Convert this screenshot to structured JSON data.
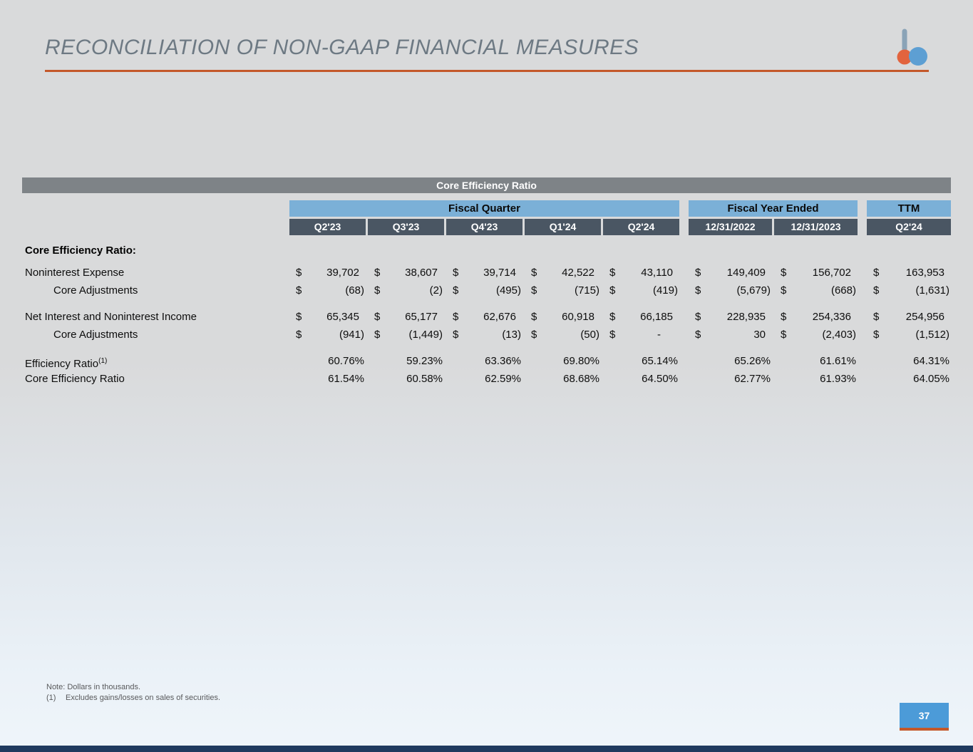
{
  "slide": {
    "title": "RECONCILIATION OF NON-GAAP FINANCIAL MEASURES",
    "page_number": "37",
    "note1": "Note: Dollars in thousands.",
    "note2_marker": "(1)",
    "note2_text": "Excludes gains/losses on sales of securities."
  },
  "colors": {
    "accent_orange": "#C4582A",
    "group_header_blue": "#7BB0D7",
    "column_header_slate": "#4A5663",
    "banner_gray": "#7E8387",
    "page_badge_blue": "#4C9BD8",
    "footer_navy": "#1F3A5F",
    "logo_orange": "#E2643E",
    "logo_blue": "#5D9FD3"
  },
  "table": {
    "banner": "Core Efficiency Ratio",
    "group_headers": {
      "fiscal_quarter": "Fiscal Quarter",
      "fiscal_year_ended": "Fiscal Year Ended",
      "ttm": "TTM"
    },
    "columns": [
      "Q2'23",
      "Q3'23",
      "Q4'23",
      "Q1'24",
      "Q2'24",
      "12/31/2022",
      "12/31/2023",
      "Q2'24"
    ],
    "section_label": "Core Efficiency Ratio:",
    "currency_symbol": "$",
    "rows": [
      {
        "label": "Noninterest Expense",
        "indent": false,
        "currency": true,
        "gap_before": false,
        "values": [
          "39,702",
          "38,607",
          "39,714",
          "42,522",
          "43,110",
          "149,409",
          "156,702",
          "163,953"
        ]
      },
      {
        "label": "Core Adjustments",
        "indent": true,
        "currency": true,
        "gap_before": false,
        "values": [
          "(68)",
          "(2)",
          "(495)",
          "(715)",
          "(419)",
          "(5,679)",
          "(668)",
          "(1,631)"
        ]
      },
      {
        "label": "Net Interest and Noninterest Income",
        "indent": false,
        "currency": true,
        "gap_before": true,
        "values": [
          "65,345",
          "65,177",
          "62,676",
          "60,918",
          "66,185",
          "228,935",
          "254,336",
          "254,956"
        ]
      },
      {
        "label": "Core Adjustments",
        "indent": true,
        "currency": true,
        "gap_before": false,
        "values": [
          "(941)",
          "(1,449)",
          "(13)",
          "(50)",
          "-",
          "30",
          "(2,403)",
          "(1,512)"
        ]
      },
      {
        "label": "Efficiency Ratio",
        "superscript": "(1)",
        "indent": false,
        "currency": false,
        "gap_before": true,
        "values": [
          "60.76%",
          "59.23%",
          "63.36%",
          "69.80%",
          "65.14%",
          "65.26%",
          "61.61%",
          "64.31%"
        ]
      },
      {
        "label": "Core Efficiency Ratio",
        "indent": false,
        "currency": false,
        "gap_before": false,
        "values": [
          "61.54%",
          "60.58%",
          "62.59%",
          "68.68%",
          "64.50%",
          "62.77%",
          "61.93%",
          "64.05%"
        ]
      }
    ]
  }
}
